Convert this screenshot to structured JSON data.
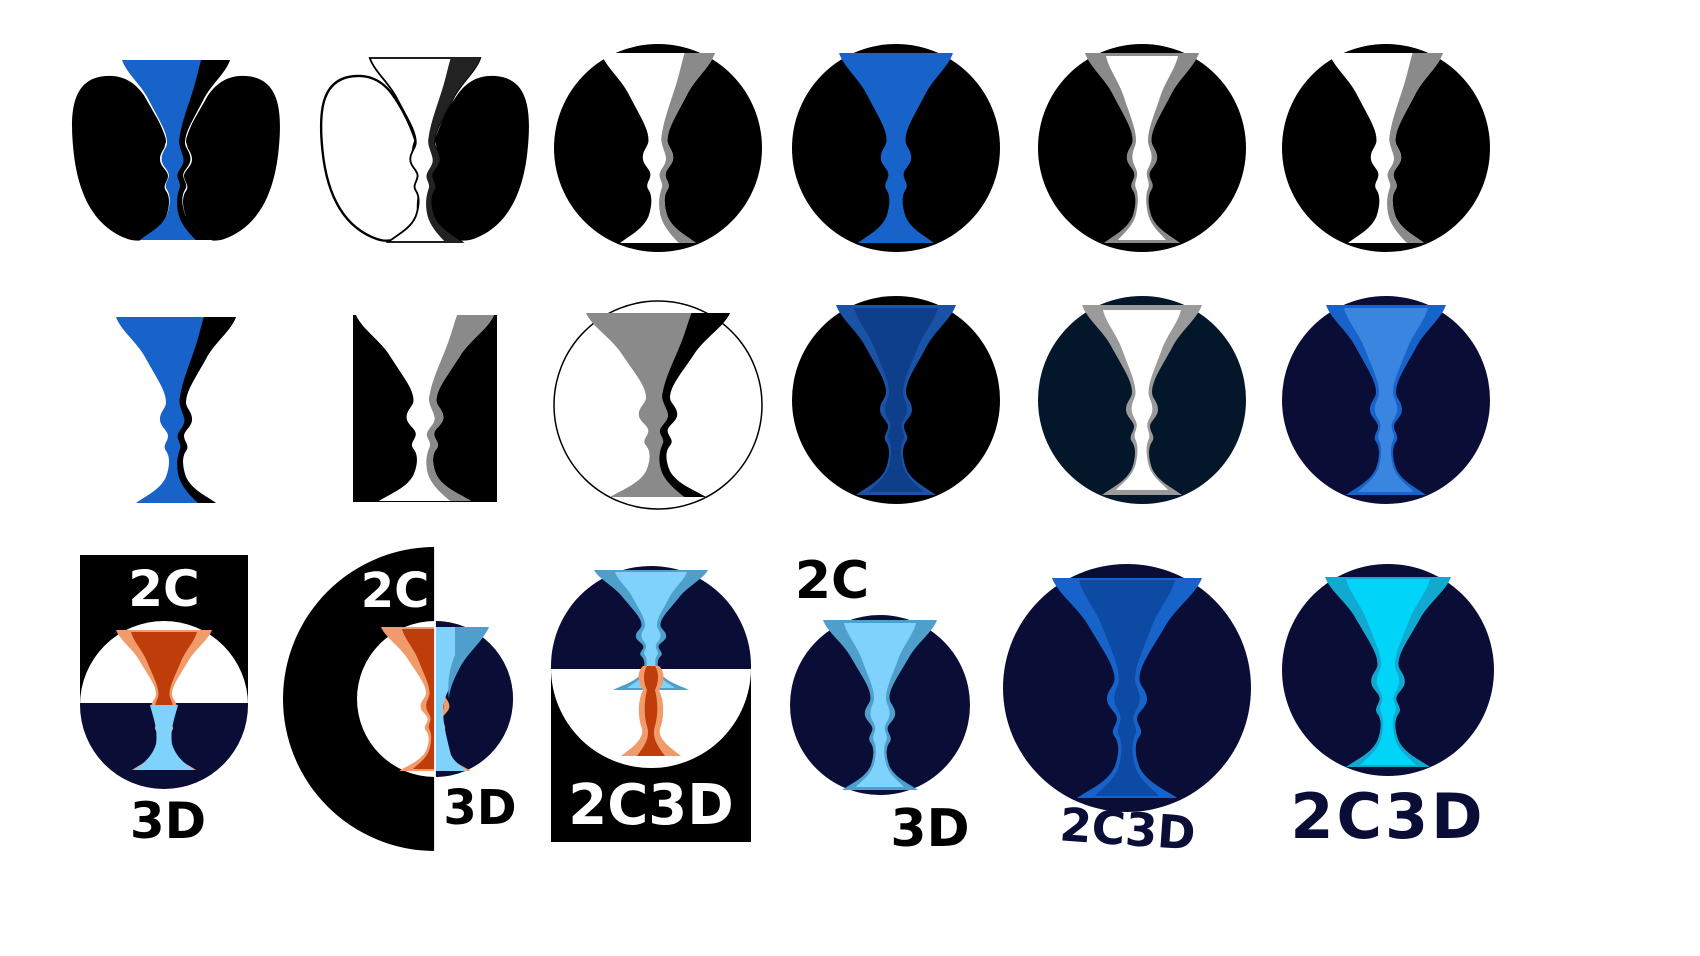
{
  "labels": {
    "t2c_a": "2C",
    "t3d_a": "3D",
    "t2c_b": "2C",
    "t3d_b": "3D",
    "t2c3d_c": "2C3D",
    "t2c_d": "2C",
    "t3d_d": "3D",
    "t2c3d_e": "2C3D",
    "t2c3d_f": "2C3D"
  },
  "colors": {
    "black": "#000000",
    "white": "#ffffff",
    "blue": "#1763c9",
    "blue_dark": "#0d4aa3",
    "gray": "#8a8a8a",
    "navy": "#0a0d36",
    "navy_teal": "#04172a",
    "light_blue": "#7fd2fb",
    "mid_blue": "#4f9fcc",
    "orange": "#bf3d0a",
    "orange_light": "#f19a6a",
    "cyan": "#00d4f8",
    "text_dark": "#0a0d36"
  }
}
